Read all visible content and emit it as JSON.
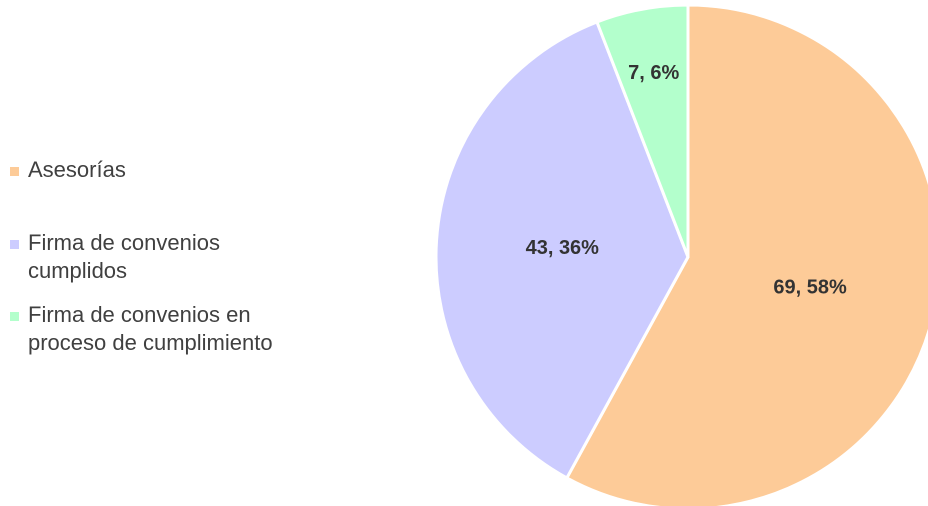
{
  "chart_data": {
    "type": "pie",
    "categories": [
      "Asesorías",
      "Firma de convenios cumplidos",
      "Firma de convenios en proceso de cumplimiento"
    ],
    "values": [
      69,
      43,
      7
    ],
    "value_labels": [
      "69, 58%",
      "43, 36%",
      "7, 6%"
    ],
    "colors": [
      "#FDCB98",
      "#CCCCFF",
      "#B3FFCC"
    ],
    "legend": "left"
  }
}
